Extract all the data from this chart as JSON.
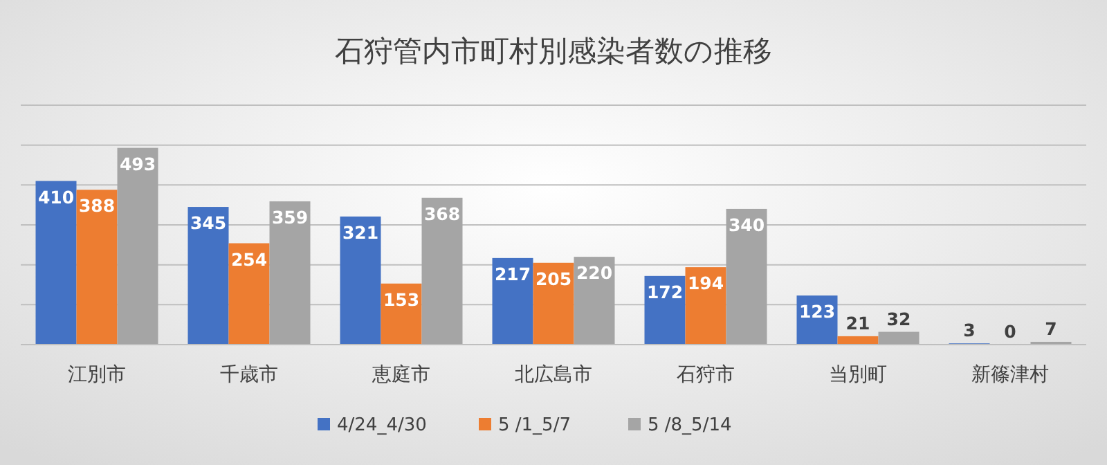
{
  "chart_data": {
    "type": "bar",
    "title": "石狩管内市町村別感染者数の推移",
    "categories": [
      "江別市",
      "千歳市",
      "恵庭市",
      "北広島市",
      "石狩市",
      "当別町",
      "新篠津村"
    ],
    "series": [
      {
        "name": "4/24_4/30",
        "color": "#4472c4",
        "values": [
          410,
          345,
          321,
          217,
          172,
          123,
          3
        ]
      },
      {
        "name": "5 /1_5/7",
        "color": "#ed7d31",
        "values": [
          388,
          254,
          153,
          205,
          194,
          21,
          0
        ]
      },
      {
        "name": "5 /8_5/14",
        "color": "#a5a5a5",
        "values": [
          493,
          359,
          368,
          220,
          340,
          32,
          7
        ]
      }
    ],
    "ylim": [
      0,
      600
    ],
    "yticks": [
      {
        "value": 0,
        "label": null
      },
      {
        "value": 100,
        "label": null
      },
      {
        "value": 200,
        "label": null
      },
      {
        "value": 300,
        "label": null
      },
      {
        "value": 400,
        "label": null
      },
      {
        "value": 500,
        "label": null
      },
      {
        "value": 600,
        "label": null
      }
    ],
    "tick_labels": "x",
    "grid": "y",
    "data_labels": true,
    "legend": "bottom"
  }
}
